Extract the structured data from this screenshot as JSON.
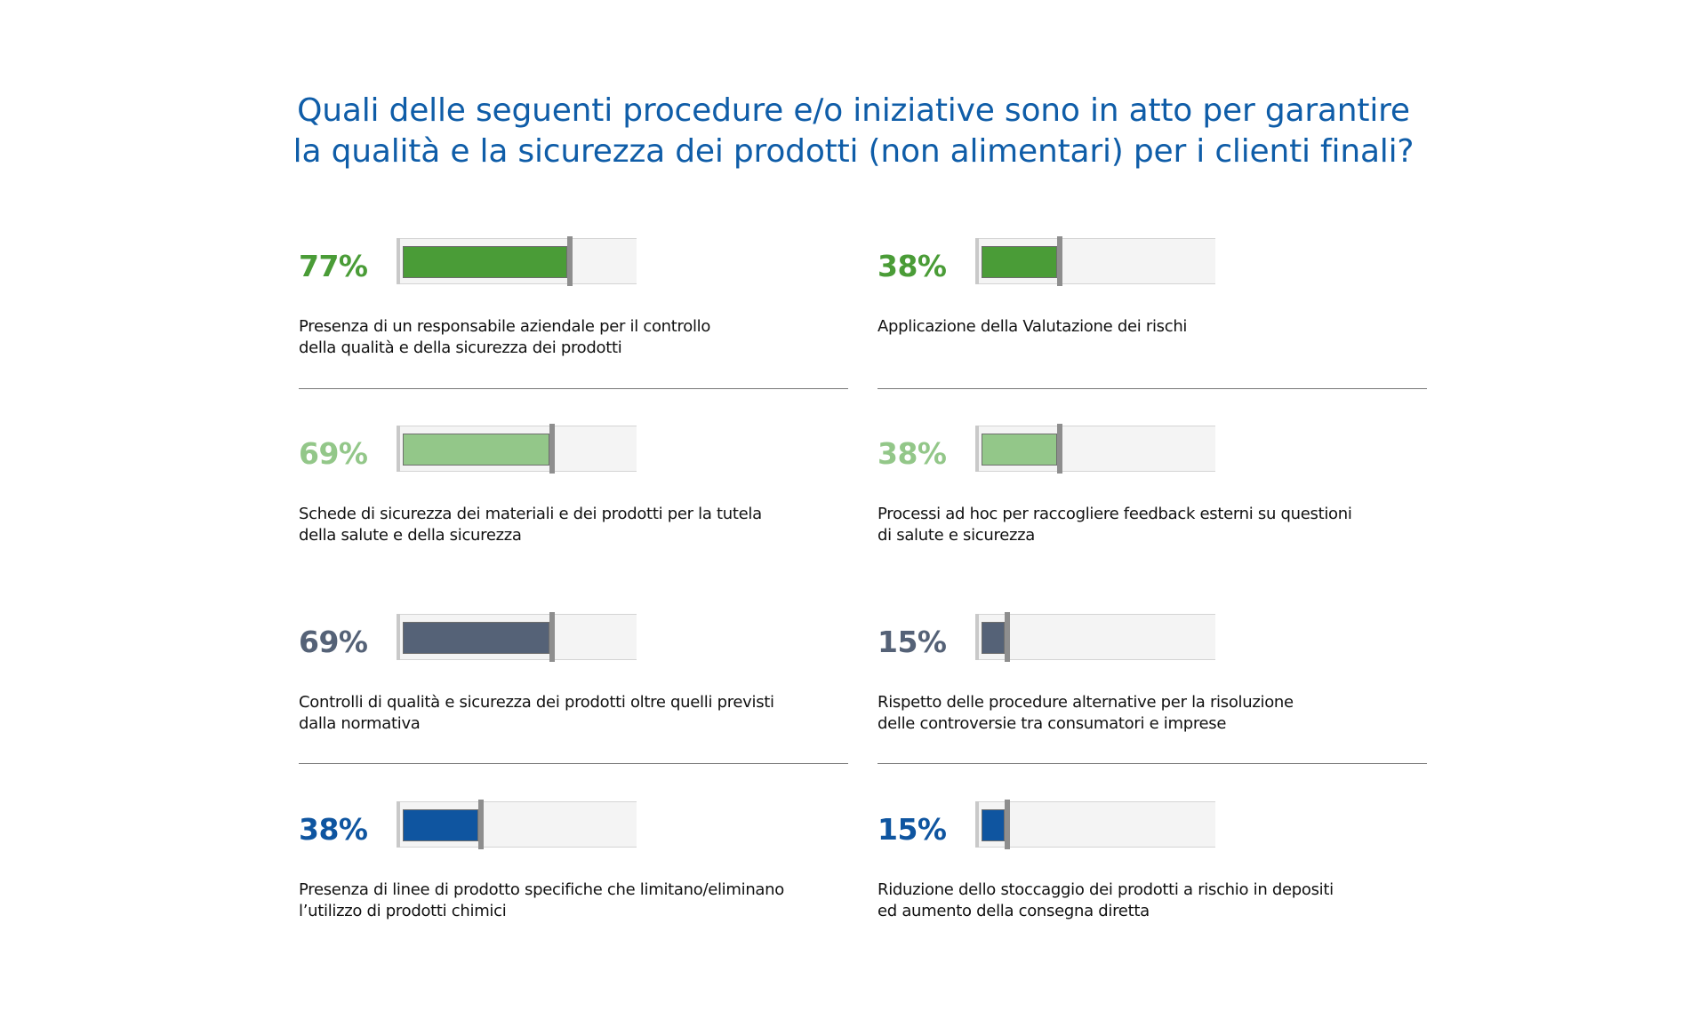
{
  "title": {
    "line1": "Quali delle seguenti procedure e/o iniziative sono in atto per garantire",
    "line2": "la qualità e la sicurezza dei prodotti (non alimentari) per i clienti finali?"
  },
  "colors": {
    "dark_green": "#4a9c37",
    "light_green": "#93c789",
    "slate": "#556277",
    "blue": "#0f55a0"
  },
  "chart_data": {
    "type": "bar",
    "title": "Quali delle seguenti procedure e/o iniziative sono in atto per garantire la qualità e la sicurezza dei prodotti (non alimentari) per i clienti finali?",
    "unit": "%",
    "ylim": [
      0,
      100
    ],
    "items": [
      {
        "value": 77,
        "pct_label": "77%",
        "color": "#4a9c37",
        "label_lines": [
          "Presenza di un responsabile aziendale per il controllo",
          "della qualità e della sicurezza dei prodotti"
        ]
      },
      {
        "value": 38,
        "pct_label": "38%",
        "color": "#4a9c37",
        "label_lines": [
          "Applicazione della Valutazione dei rischi"
        ]
      },
      {
        "value": 69,
        "pct_label": "69%",
        "color": "#93c789",
        "label_lines": [
          "Schede di sicurezza dei materiali e dei prodotti per la tutela",
          "della salute e della sicurezza"
        ]
      },
      {
        "value": 38,
        "pct_label": "38%",
        "color": "#93c789",
        "label_lines": [
          "Processi ad hoc per raccogliere feedback esterni su questioni",
          "di salute e sicurezza"
        ]
      },
      {
        "value": 69,
        "pct_label": "69%",
        "color": "#556277",
        "label_lines": [
          "Controlli di qualità e sicurezza dei prodotti oltre quelli previsti",
          "dalla normativa"
        ]
      },
      {
        "value": 15,
        "pct_label": "15%",
        "color": "#556277",
        "label_lines": [
          "Rispetto delle procedure alternative per la risoluzione",
          "delle controversie tra consumatori e imprese"
        ]
      },
      {
        "value": 38,
        "pct_label": "38%",
        "color": "#0f55a0",
        "label_lines": [
          "Presenza di linee di prodotto specifiche che limitano/eliminano",
          "l’utilizzo di prodotti chimici"
        ]
      },
      {
        "value": 15,
        "pct_label": "15%",
        "color": "#0f55a0",
        "label_lines": [
          "Riduzione dello stoccaggio dei prodotti a rischio in depositi",
          "ed aumento della consegna diretta"
        ]
      }
    ]
  }
}
